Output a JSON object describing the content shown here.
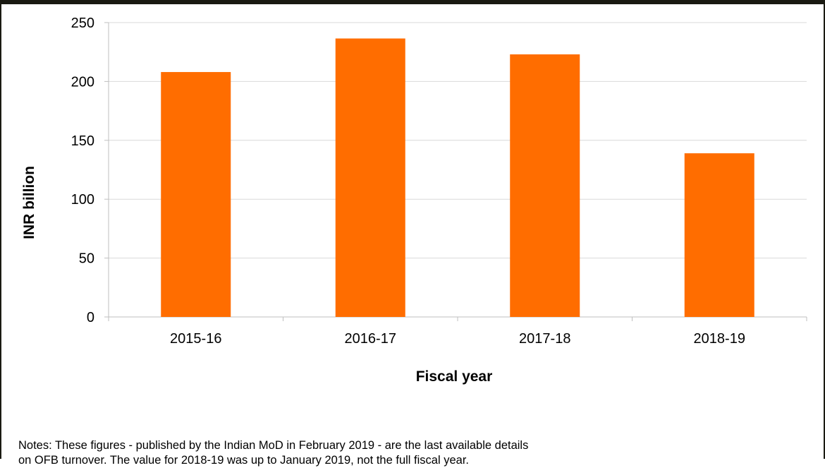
{
  "colors": {
    "bar": "#ff6d00",
    "grid": "#d9d9d9",
    "axis": "#bfbfbf",
    "frame": "#1a1a12"
  },
  "notes": {
    "line1": "Notes: These figures - published by the Indian MoD in February 2019 - are the last available details",
    "line2": "on OFB turnover. The value for 2018-19 was up to January 2019, not the full fiscal year."
  },
  "chart_data": {
    "type": "bar",
    "categories": [
      "2015-16",
      "2016-17",
      "2017-18",
      "2018-19"
    ],
    "values": [
      208,
      236.5,
      223,
      139
    ],
    "xlabel": "Fiscal year",
    "ylabel": "INR billion",
    "ylim": [
      0,
      250
    ],
    "yticks": [
      0,
      50,
      100,
      150,
      200,
      250
    ],
    "grid": true,
    "legend": "none"
  }
}
